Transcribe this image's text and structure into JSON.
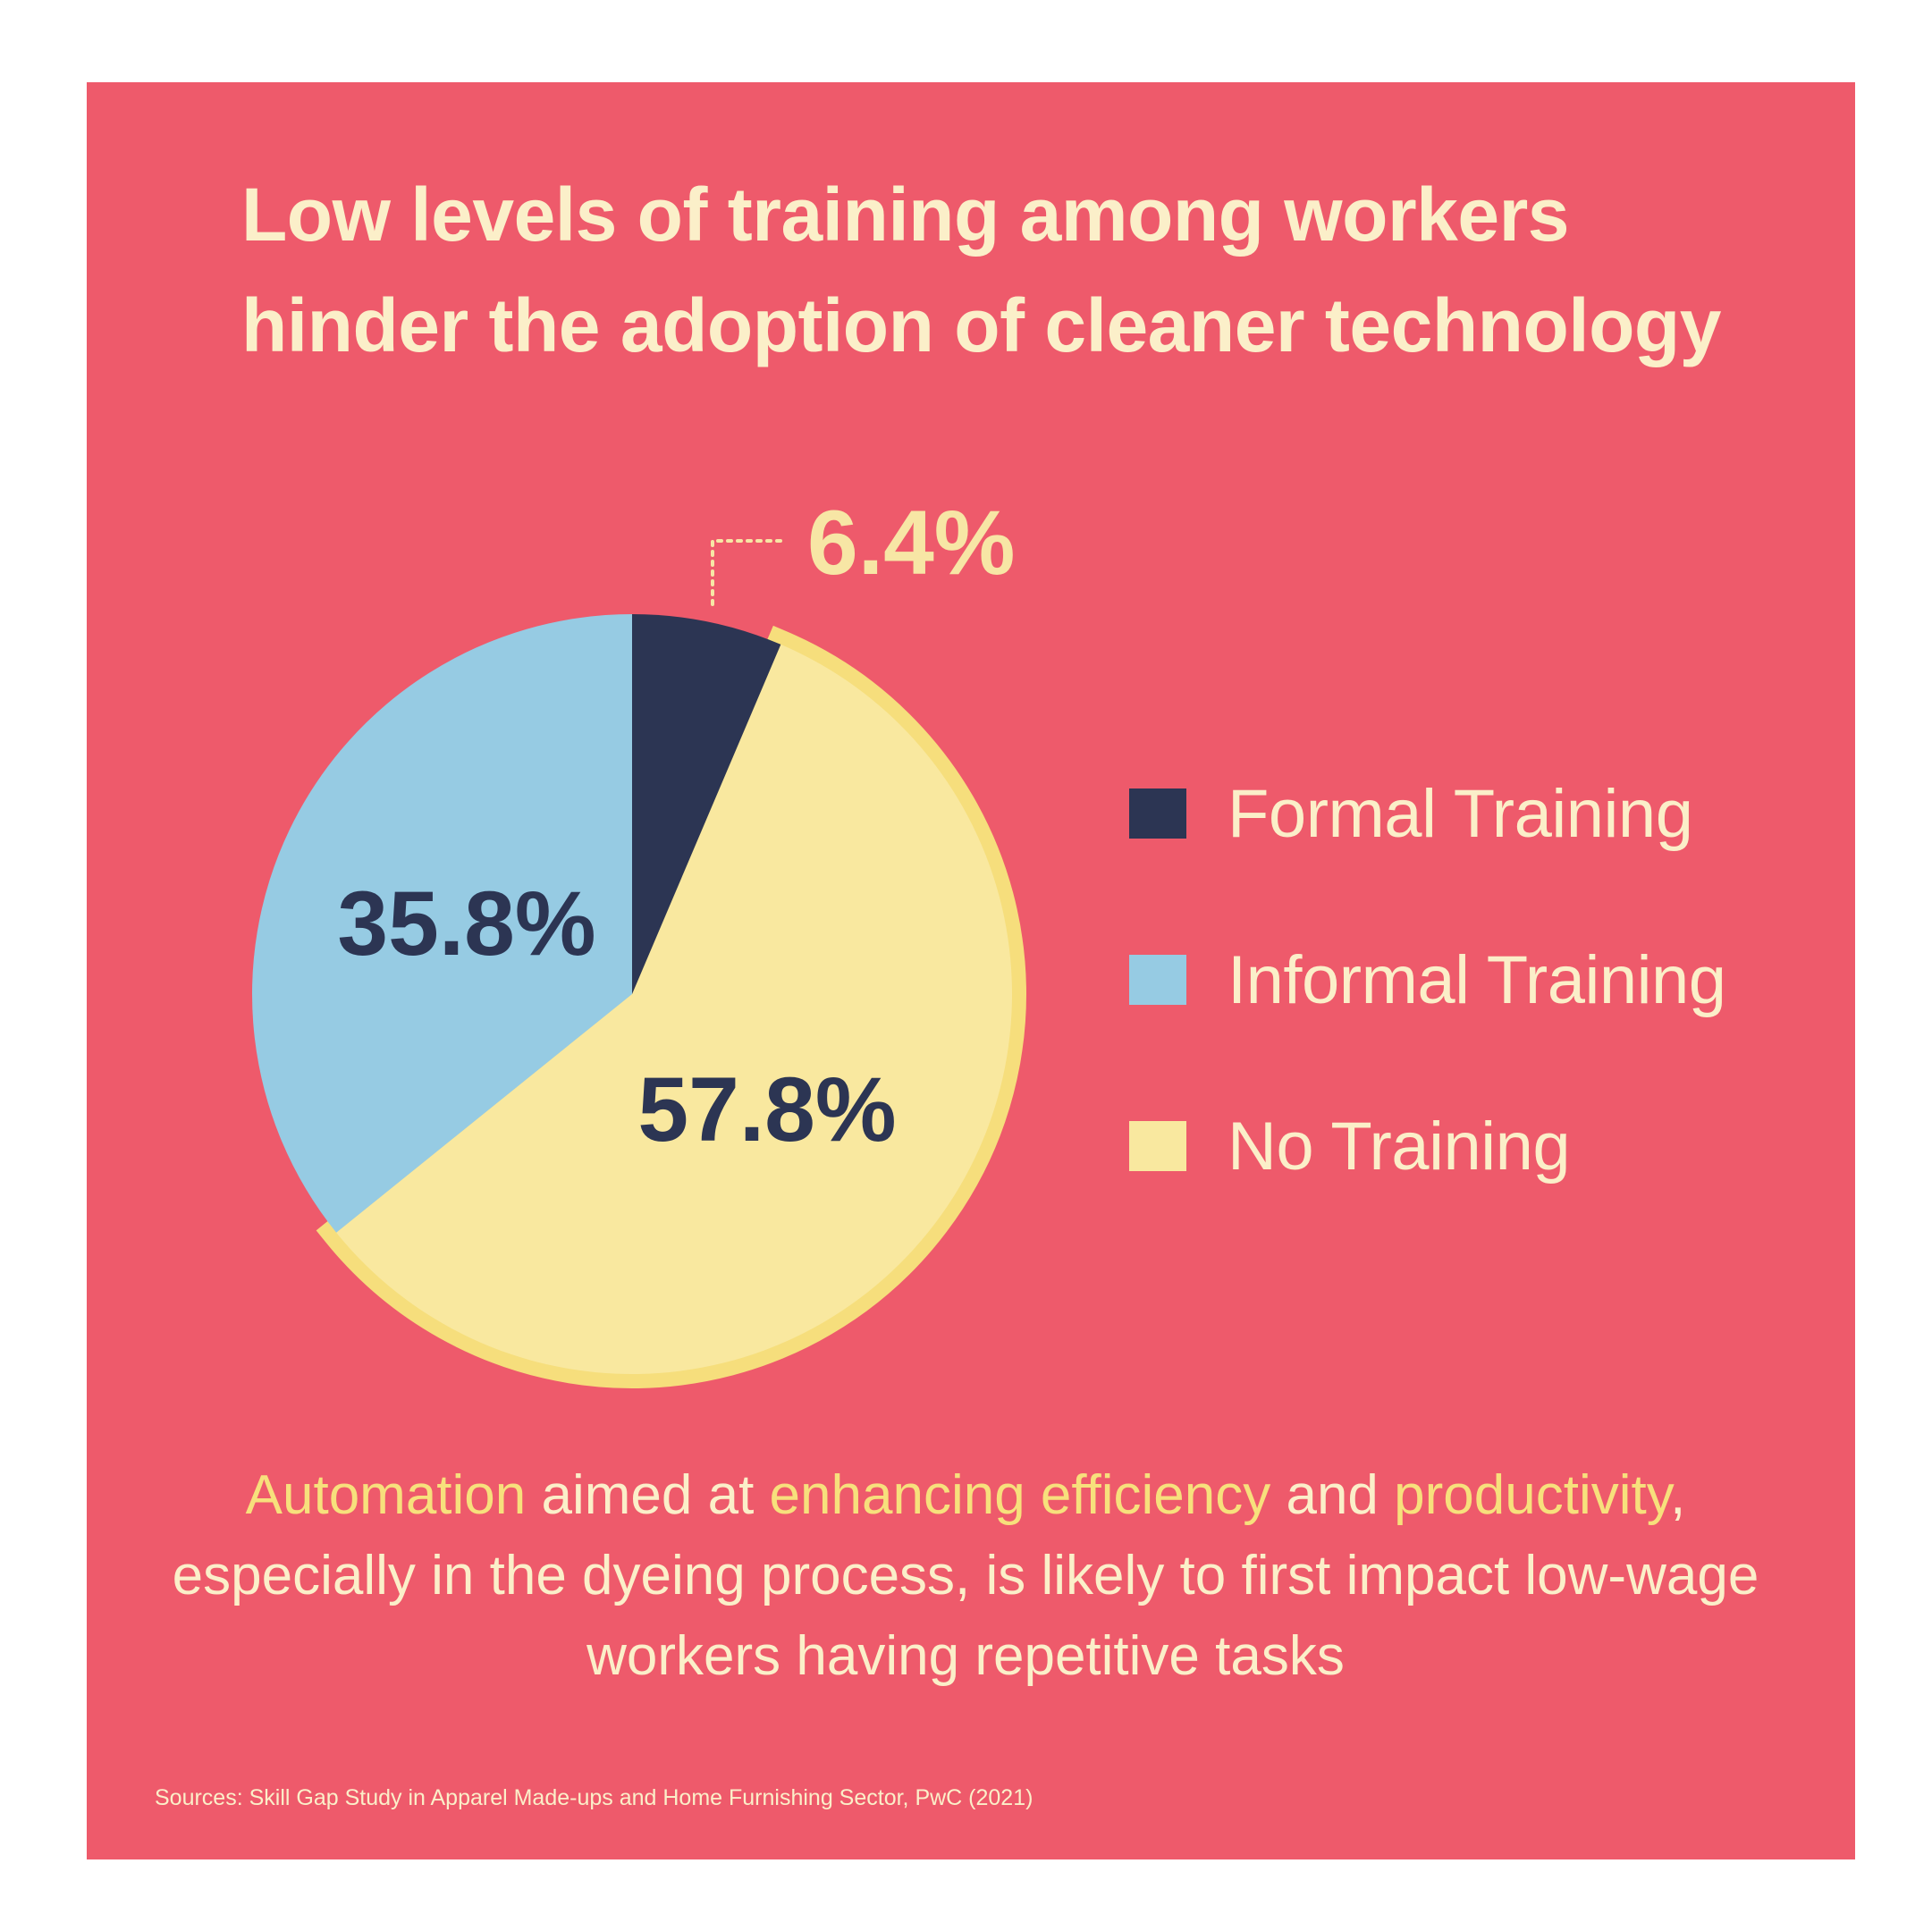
{
  "title_lines": [
    "Low levels of training among workers",
    "hinder the adoption of cleaner technology"
  ],
  "chart_data": {
    "type": "pie",
    "slices": [
      {
        "label": "Formal Training",
        "value": 6.4,
        "display": "6.4%",
        "color": "#2c3553"
      },
      {
        "label": "No Training",
        "value": 57.8,
        "display": "57.8%",
        "color": "#f9e89f"
      },
      {
        "label": "Informal Training",
        "value": 35.8,
        "display": "35.8%",
        "color": "#96cbe3"
      }
    ],
    "legend": [
      "Formal Training",
      "Informal Training",
      "No Training"
    ],
    "legend_position": "right",
    "colors": {
      "formal": "#2c3553",
      "informal": "#96cbe3",
      "none": "#f9e89f",
      "none_rim": "#f6de7c",
      "label_dark": "#2c3553",
      "label_light": "#f7e6a5"
    }
  },
  "legend": {
    "items": [
      {
        "label": "Formal Training",
        "color": "#2c3553"
      },
      {
        "label": "Informal Training",
        "color": "#96cbe3"
      },
      {
        "label": "No Training",
        "color": "#f9e89f"
      }
    ]
  },
  "caption": {
    "segments": [
      {
        "text": "Automation",
        "highlight": true
      },
      {
        "text": " aimed at ",
        "highlight": false
      },
      {
        "text": "enhancing efficiency",
        "highlight": true
      },
      {
        "text": " and ",
        "highlight": false
      },
      {
        "text": "productivity",
        "highlight": true
      },
      {
        "text": ", especially in the dyeing process, is likely to first impact low-wage workers having repetitive tasks",
        "highlight": false
      }
    ]
  },
  "source": "Sources: Skill Gap Study in Apparel Made-ups and Home Furnishing Sector, PwC (2021)",
  "colors": {
    "background": "#ee5a6b",
    "text_cream": "#fbefc9",
    "highlight_yellow": "#f7e07c"
  }
}
